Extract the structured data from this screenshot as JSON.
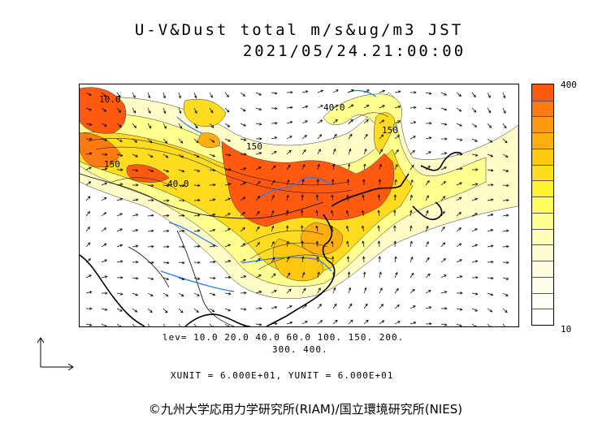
{
  "title_line1": "U-V&Dust total m/s&ug/m3 JST",
  "title_line2": "2021/05/24.21:00:00",
  "legend": {
    "max_label": "400",
    "min_label": "10",
    "colors": [
      "#ff5a10",
      "#ff7a10",
      "#ff9a10",
      "#ffb010",
      "#ffc810",
      "#ffdc20",
      "#fff030",
      "#ffff60",
      "#ffff90",
      "#ffffb8",
      "#fffcd0",
      "#fffce0",
      "#fffdec",
      "#fffef4",
      "#ffffff"
    ]
  },
  "map_labels": [
    "150",
    "40.0",
    "40.0",
    "10.0",
    "150",
    "150"
  ],
  "levels_line1": "lev= 10.0 20.0 40.0 60.0 100. 150. 200.",
  "levels_line2": "300. 400.",
  "units": "XUNIT = 6.000E+01, YUNIT = 6.000E+01",
  "credit": "©九州大学応用力学研究所(RIAM)/国立環境研究所(NIES)"
}
